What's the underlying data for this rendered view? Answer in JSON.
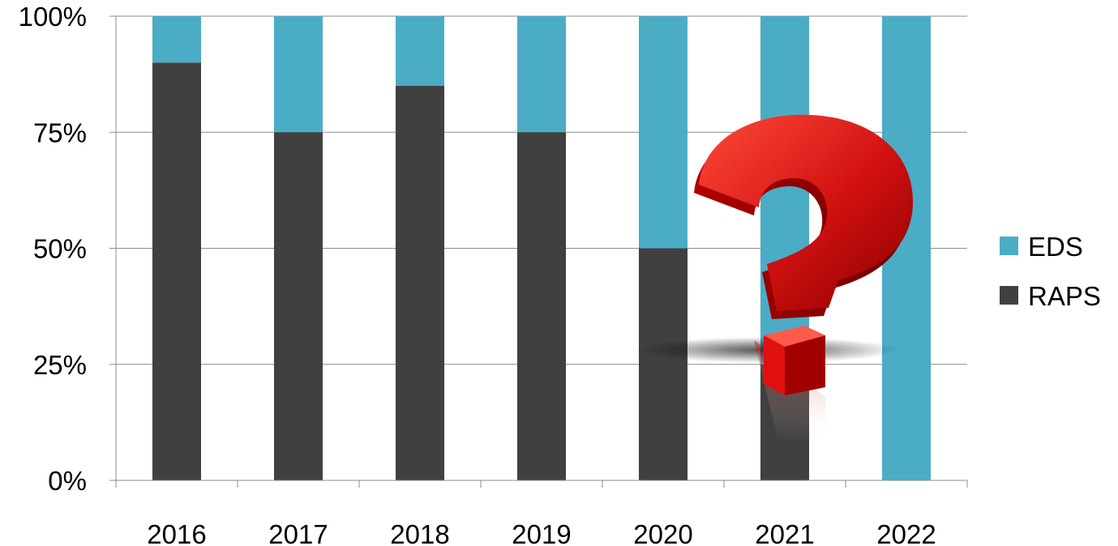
{
  "chart_data": {
    "type": "bar",
    "stacked": true,
    "percent_scale": true,
    "categories": [
      "2016",
      "2017",
      "2018",
      "2019",
      "2020",
      "2021",
      "2022"
    ],
    "series": [
      {
        "name": "RAPS",
        "values": [
          90,
          75,
          85,
          75,
          50,
          25,
          0
        ],
        "color": "#404040"
      },
      {
        "name": "EDS",
        "values": [
          10,
          25,
          15,
          25,
          50,
          75,
          100
        ],
        "color": "#4bacc6"
      }
    ],
    "ylim": [
      0,
      100
    ],
    "yticks": [
      0,
      25,
      50,
      75,
      100
    ],
    "ytick_labels": [
      "0%",
      "25%",
      "50%",
      "75%",
      "100%"
    ],
    "grid": true,
    "legend_position": "right",
    "legend_order": [
      "EDS",
      "RAPS"
    ],
    "annotation_icon": "question-mark-icon",
    "annotation_color": "#cc0000"
  }
}
